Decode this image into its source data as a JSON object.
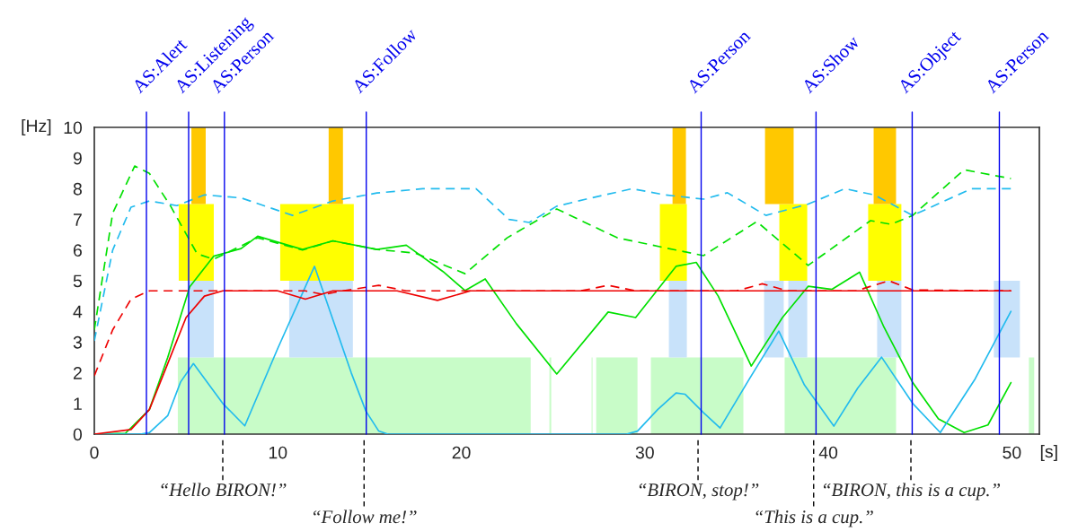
{
  "chart_data": {
    "type": "line",
    "xlabel": "[s]",
    "ylabel": "[Hz]",
    "xlim": [
      0,
      51.5
    ],
    "ylim": [
      0,
      10
    ],
    "xticks": [
      0,
      10,
      20,
      30,
      40,
      50
    ],
    "yticks": [
      0,
      1,
      2,
      3,
      4,
      5,
      6,
      7,
      8,
      9,
      10
    ],
    "grid": false,
    "legend": false,
    "series": [
      {
        "type": "area",
        "color": "#c8fcc8",
        "x": [
          4.55,
          4.55,
          23.78,
          23.78
        ],
        "values": [
          0,
          2.5,
          2.5,
          0
        ]
      },
      {
        "type": "area",
        "color": "#c8fcc8",
        "x": [
          24.8,
          24.8,
          24.9,
          24.9
        ],
        "values": [
          0,
          2.5,
          2.5,
          0
        ]
      },
      {
        "type": "area",
        "color": "#c8fcc8",
        "x": [
          27.1,
          27.1,
          27.15,
          27.15
        ],
        "values": [
          0,
          2.5,
          2.5,
          0
        ]
      },
      {
        "type": "area",
        "color": "#c8fcc8",
        "x": [
          27.35,
          27.35,
          29.6,
          29.6
        ],
        "values": [
          0,
          2.5,
          2.5,
          0
        ]
      },
      {
        "type": "area",
        "color": "#c8fcc8",
        "x": [
          30.33,
          30.33,
          35.37,
          35.37
        ],
        "values": [
          0,
          2.5,
          2.5,
          0
        ]
      },
      {
        "type": "area",
        "color": "#c8fcc8",
        "x": [
          37.62,
          37.62,
          43.69,
          43.69
        ],
        "values": [
          0,
          2.5,
          2.5,
          0
        ]
      },
      {
        "type": "area",
        "color": "#c8fcc8",
        "x": [
          50.93,
          50.93,
          51.22,
          51.22
        ],
        "values": [
          0,
          2.5,
          2.5,
          0
        ]
      },
      {
        "type": "area",
        "color": "#c8e2fa",
        "x": [
          5.09,
          5.09,
          6.51,
          6.51
        ],
        "values": [
          2.5,
          5,
          5,
          2.5
        ]
      },
      {
        "type": "area",
        "color": "#c8e2fa",
        "x": [
          10.62,
          10.62,
          14.09,
          14.09
        ],
        "values": [
          2.5,
          5,
          5,
          2.5
        ]
      },
      {
        "type": "area",
        "color": "#c8e2fa",
        "x": [
          31.31,
          31.31,
          32.29,
          32.29
        ],
        "values": [
          2.5,
          5,
          5,
          2.5
        ]
      },
      {
        "type": "area",
        "color": "#c8e2fa",
        "x": [
          36.5,
          36.5,
          37.57,
          37.57
        ],
        "values": [
          2.5,
          5,
          5,
          2.5
        ]
      },
      {
        "type": "area",
        "color": "#c8e2fa",
        "x": [
          37.82,
          37.82,
          38.85,
          38.85
        ],
        "values": [
          2.5,
          5,
          5,
          2.5
        ]
      },
      {
        "type": "area",
        "color": "#c8e2fa",
        "x": [
          42.66,
          42.66,
          43.98,
          43.98
        ],
        "values": [
          2.5,
          5,
          5,
          2.5
        ]
      },
      {
        "type": "area",
        "color": "#c8e2fa",
        "x": [
          49.02,
          49.02,
          50.44,
          50.44
        ],
        "values": [
          2.5,
          5,
          5,
          2.5
        ]
      },
      {
        "type": "area",
        "color": "#ffff00",
        "x": [
          4.6,
          4.6,
          6.51,
          6.51
        ],
        "values": [
          5,
          7.5,
          7.5,
          5
        ]
      },
      {
        "type": "area",
        "color": "#ffff00",
        "x": [
          10.13,
          10.13,
          14.14,
          14.14
        ],
        "values": [
          5,
          7.5,
          7.5,
          5
        ]
      },
      {
        "type": "area",
        "color": "#ffff00",
        "x": [
          30.82,
          30.82,
          32.29,
          32.29
        ],
        "values": [
          5,
          7.5,
          7.5,
          5
        ]
      },
      {
        "type": "area",
        "color": "#ffff00",
        "x": [
          37.33,
          37.33,
          38.85,
          38.85
        ],
        "values": [
          5,
          7.5,
          7.5,
          5
        ]
      },
      {
        "type": "area",
        "color": "#ffff00",
        "x": [
          42.17,
          42.17,
          43.98,
          43.98
        ],
        "values": [
          5,
          7.5,
          7.5,
          5
        ]
      },
      {
        "type": "area",
        "color": "#ffc800",
        "x": [
          5.29,
          5.29,
          6.07,
          6.07
        ],
        "values": [
          7.5,
          10,
          10,
          7.5
        ]
      },
      {
        "type": "area",
        "color": "#ffc800",
        "x": [
          12.77,
          12.77,
          13.55,
          13.55
        ],
        "values": [
          7.5,
          10,
          10,
          7.5
        ]
      },
      {
        "type": "area",
        "color": "#ffc800",
        "x": [
          31.51,
          31.51,
          32.24,
          32.24
        ],
        "values": [
          7.5,
          10,
          10,
          7.5
        ]
      },
      {
        "type": "area",
        "color": "#ffc800",
        "x": [
          36.55,
          36.55,
          38.11,
          38.11
        ],
        "values": [
          7.5,
          10,
          10,
          7.5
        ]
      },
      {
        "type": "area",
        "color": "#ffc800",
        "x": [
          42.47,
          42.47,
          43.69,
          43.69
        ],
        "values": [
          7.5,
          10,
          10,
          7.5
        ]
      },
      {
        "color": "#00e000",
        "line_style": "dashed",
        "x": [
          0,
          1,
          2.2,
          3,
          4.16,
          5.6,
          6.5,
          8.9,
          11.35,
          13,
          15.4,
          17.5,
          20.2,
          22.5,
          25.2,
          28.5,
          31.7,
          33.2,
          36.1,
          38.9,
          42.3,
          43.4,
          44.6,
          47.4,
          49.95
        ],
        "values": [
          3.4,
          7.2,
          8.74,
          8.5,
          7.43,
          5.88,
          5.7,
          6.4,
          6.0,
          6.3,
          6.02,
          5.9,
          5.23,
          6.4,
          7.34,
          6.4,
          6.0,
          5.82,
          6.93,
          5.5,
          6.96,
          6.84,
          7.13,
          8.62,
          8.33
        ]
      },
      {
        "color": "#00e000",
        "line_style": "solid",
        "x": [
          0,
          1.7,
          3,
          4,
          5.2,
          6.5,
          8,
          8.9,
          11.35,
          13,
          15.4,
          17,
          19,
          20.2,
          21.3,
          23,
          25.2,
          28,
          29.5,
          31.7,
          32.8,
          34,
          35.8,
          37.5,
          38.9,
          40.2,
          41.7,
          43,
          44.6,
          46,
          47.4,
          48.7,
          49.95
        ],
        "values": [
          0,
          0.03,
          0.8,
          2.5,
          4.8,
          5.8,
          6.05,
          6.45,
          6.02,
          6.3,
          6.02,
          6.16,
          5.3,
          4.68,
          5.06,
          3.6,
          1.96,
          3.98,
          3.8,
          5.47,
          5.6,
          4.5,
          2.22,
          3.8,
          4.82,
          4.72,
          5.28,
          3.53,
          1.68,
          0.5,
          0.05,
          0.3,
          1.68
        ]
      },
      {
        "color": "#22bbee",
        "line_style": "dashed",
        "x": [
          0,
          1,
          2,
          3,
          4.5,
          6,
          8,
          10.8,
          13,
          15.4,
          17.9,
          20.8,
          22.6,
          23.7,
          25.2,
          26.8,
          29.3,
          31.1,
          33.2,
          34.5,
          36.6,
          38.9,
          40.9,
          42.5,
          44.6,
          47.8,
          49.95
        ],
        "values": [
          3.04,
          6.0,
          7.4,
          7.6,
          7.45,
          7.8,
          7.7,
          7.13,
          7.6,
          7.86,
          8.0,
          8.0,
          7.0,
          6.9,
          7.43,
          7.66,
          8.0,
          7.8,
          7.66,
          7.87,
          7.13,
          7.5,
          8.0,
          7.8,
          7.13,
          8.0,
          8.0
        ]
      },
      {
        "color": "#22bbee",
        "line_style": "solid",
        "x": [
          0,
          2.5,
          3,
          4,
          4.7,
          5.4,
          7,
          8.2,
          10,
          12.0,
          14,
          14.8,
          15.5,
          16,
          29,
          29.6,
          30.7,
          31.7,
          32.2,
          33.2,
          34.1,
          35.7,
          37.3,
          38.7,
          40.3,
          41.6,
          42.9,
          44.6,
          46.1,
          48,
          49.95
        ],
        "values": [
          0,
          0,
          0.05,
          0.6,
          1.7,
          2.3,
          1.0,
          0.27,
          2.8,
          5.47,
          2.0,
          0.75,
          0.1,
          0,
          0,
          0.1,
          0.8,
          1.34,
          1.3,
          0.7,
          0.2,
          1.8,
          3.36,
          1.6,
          0.26,
          1.5,
          2.51,
          1.0,
          0.05,
          1.8,
          4.0
        ]
      },
      {
        "color": "#ee0000",
        "line_style": "dashed",
        "x": [
          0,
          1,
          2,
          3,
          11.5,
          12.5,
          13.5,
          15.5,
          17,
          26.5,
          28,
          29.5,
          35,
          36.4,
          37.8,
          41.5,
          43.3,
          44.6,
          49.95
        ],
        "values": [
          1.9,
          3.4,
          4.4,
          4.67,
          4.67,
          4.55,
          4.67,
          4.85,
          4.67,
          4.67,
          4.85,
          4.67,
          4.67,
          4.9,
          4.67,
          4.67,
          5.0,
          4.7,
          4.67
        ]
      },
      {
        "color": "#ee0000",
        "line_style": "solid",
        "x": [
          0,
          2,
          3,
          4,
          5,
          6,
          7,
          10,
          11.5,
          13,
          16.5,
          18.7,
          20.5,
          49.95
        ],
        "values": [
          0,
          0.15,
          0.8,
          2.3,
          3.8,
          4.5,
          4.67,
          4.67,
          4.4,
          4.67,
          4.67,
          4.36,
          4.67,
          4.67
        ]
      }
    ],
    "ref_lines": [
      {
        "axis": "x",
        "value": 2.84,
        "label": "AS:Alert",
        "color": "#0000ee",
        "line_style": "solid"
      },
      {
        "axis": "x",
        "value": 5.14,
        "label": "AS:Listening",
        "color": "#0000ee",
        "line_style": "solid"
      },
      {
        "axis": "x",
        "value": 7.09,
        "label": "AS:Person",
        "color": "#0000ee",
        "line_style": "solid"
      },
      {
        "axis": "x",
        "value": 14.82,
        "label": "AS:Follow",
        "color": "#0000ee",
        "line_style": "solid"
      },
      {
        "axis": "x",
        "value": 33.07,
        "label": "AS:Person",
        "color": "#0000ee",
        "line_style": "solid"
      },
      {
        "axis": "x",
        "value": 39.33,
        "label": "AS:Show",
        "color": "#0000ee",
        "line_style": "solid"
      },
      {
        "axis": "x",
        "value": 44.57,
        "label": "AS:Object",
        "color": "#0000ee",
        "line_style": "solid"
      },
      {
        "axis": "x",
        "value": 49.32,
        "label": "AS:Person",
        "color": "#0000ee",
        "line_style": "solid"
      },
      {
        "axis": "x",
        "value": 7.0,
        "label": "“Hello BIRON!”",
        "color": "#000000",
        "line_style": "dashed"
      },
      {
        "axis": "x",
        "value": 14.7,
        "label": "“Follow me!”",
        "color": "#000000",
        "line_style": "dashed"
      },
      {
        "axis": "x",
        "value": 32.9,
        "label": "“BIRON, stop!”",
        "color": "#000000",
        "line_style": "dashed"
      },
      {
        "axis": "x",
        "value": 39.2,
        "label": "“This is a cup.”",
        "color": "#000000",
        "line_style": "dashed"
      },
      {
        "axis": "x",
        "value": 44.5,
        "label": "“BIRON, this is a cup.”",
        "color": "#000000",
        "line_style": "dashed"
      }
    ]
  }
}
